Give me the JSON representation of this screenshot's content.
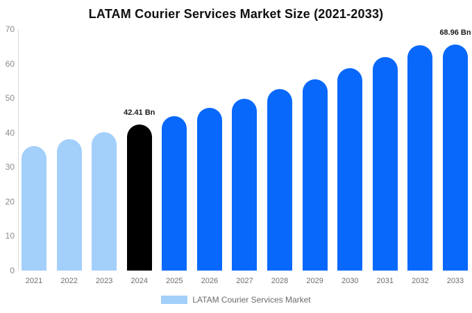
{
  "chart_data": {
    "type": "bar",
    "title": "LATAM Courier Services Market Size (2021-2033)",
    "xlabel": "",
    "ylabel": "",
    "unit": "Bn",
    "categories": [
      "2021",
      "2022",
      "2023",
      "2024",
      "2025",
      "2026",
      "2027",
      "2028",
      "2029",
      "2030",
      "2031",
      "2032",
      "2033"
    ],
    "values": [
      36.05,
      38.06,
      40.18,
      42.41,
      44.77,
      47.25,
      49.87,
      52.64,
      55.56,
      58.64,
      61.9,
      65.33,
      68.96
    ],
    "point_colors": [
      "#A3CFFB",
      "#A3CFFB",
      "#A3CFFB",
      "#000000",
      "#0768FB",
      "#0768FB",
      "#0768FB",
      "#0768FB",
      "#0768FB",
      "#0768FB",
      "#0768FB",
      "#0768FB",
      "#0768FB"
    ],
    "annotations": [
      {
        "index": 3,
        "text": "42.41 Bn"
      },
      {
        "index": 12,
        "text": "68.96 Bn"
      }
    ],
    "ylim": [
      0,
      70
    ],
    "yticks": [
      0,
      10,
      20,
      30,
      40,
      50,
      60,
      70
    ],
    "grid": false,
    "legend": {
      "position": "bottom",
      "entries": [
        {
          "label": "LATAM Courier Services Market",
          "color": "#A3CFFB"
        }
      ]
    },
    "colors": {
      "historical_bar": "#A3CFFB",
      "highlight_bar": "#000000",
      "forecast_bar": "#0768FB",
      "axis_line": "#d9d9d9",
      "tick_text": "#8a8a8a",
      "title_text": "#0f0f0f"
    }
  }
}
